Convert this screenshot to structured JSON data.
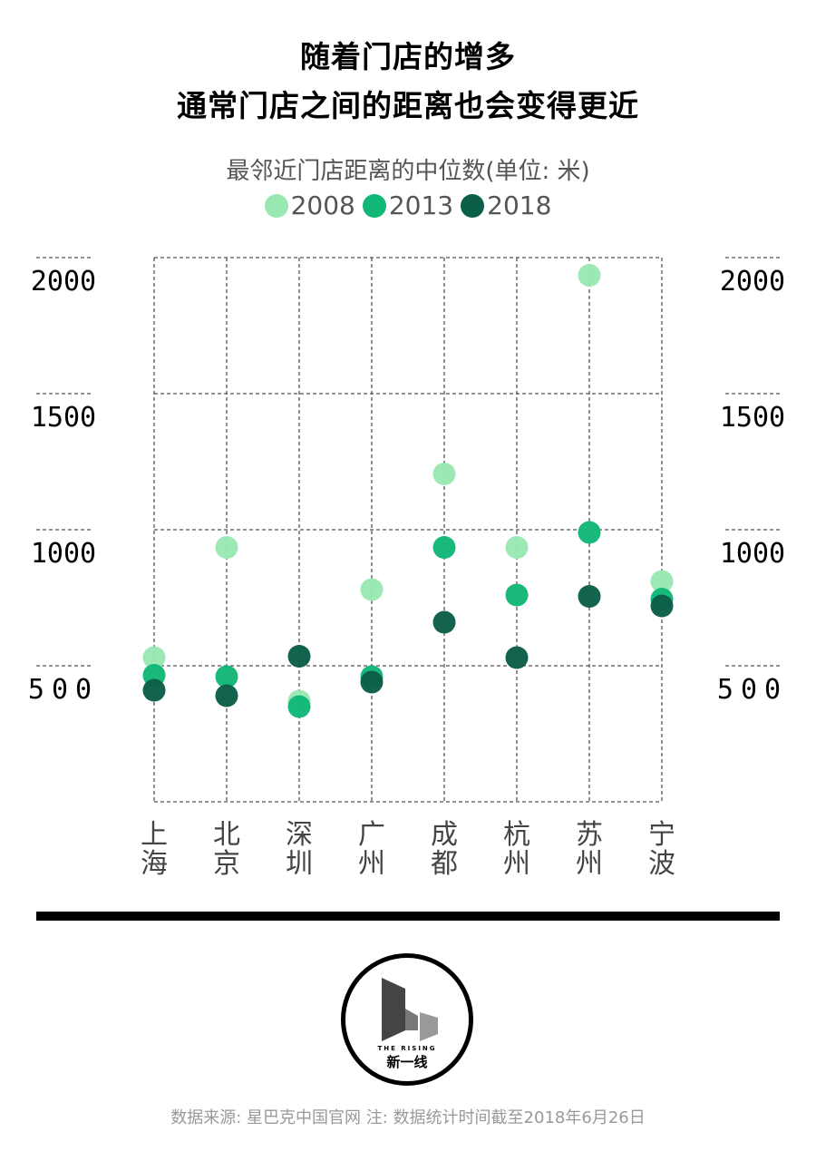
{
  "title_line1": "随着门店的增多",
  "title_line2": "通常门店之间的距离也会变得更近",
  "colors": {
    "2008": "#98e8b2",
    "2013": "#11b777",
    "2018": "#0b5e48"
  },
  "chart_data": {
    "type": "scatter",
    "title": "最邻近门店距离的中位数(单位: 米)",
    "categories": [
      "上海",
      "北京",
      "深圳",
      "广州",
      "成都",
      "杭州",
      "苏州",
      "宁波"
    ],
    "series": [
      {
        "name": "2008",
        "values": [
          530,
          935,
          370,
          780,
          1205,
          935,
          1935,
          810
        ]
      },
      {
        "name": "2013",
        "values": [
          465,
          460,
          350,
          460,
          935,
          760,
          990,
          745
        ]
      },
      {
        "name": "2018",
        "values": [
          410,
          390,
          535,
          440,
          660,
          530,
          755,
          720
        ]
      }
    ],
    "y_ticks": [
      {
        "value": 500,
        "label": "500"
      },
      {
        "value": 1000,
        "label": "1000"
      },
      {
        "value": 1500,
        "label": "1500"
      },
      {
        "value": 2000,
        "label": "2000"
      }
    ],
    "ylim": [
      0,
      2000
    ],
    "grid": true,
    "legend_position": "top-center"
  },
  "logo": {
    "small_text": "THE RISING",
    "name": "新一线"
  },
  "source_note": "数据来源: 星巴克中国官网  注: 数据统计时间截至2018年6月26日"
}
